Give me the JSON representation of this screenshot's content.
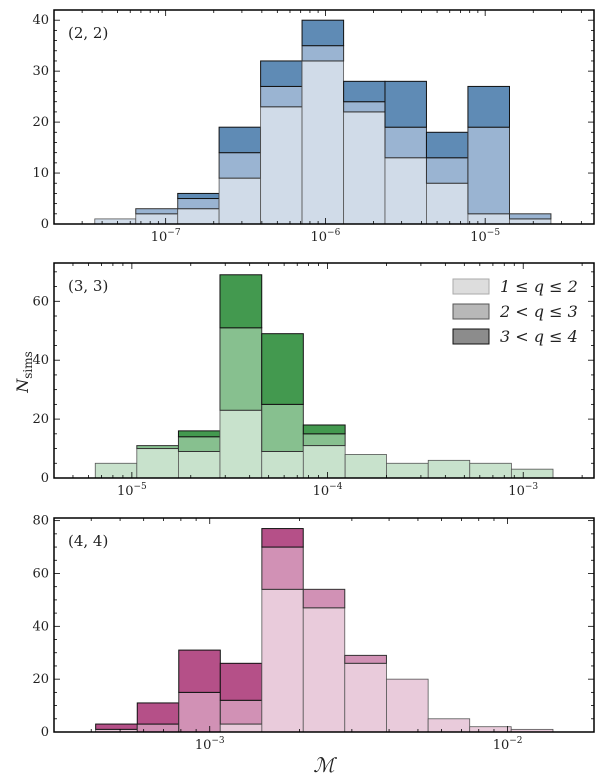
{
  "chart_data": [
    {
      "type": "bar",
      "stacked": true,
      "panel_label": "(2, 2)",
      "x_scale": "log",
      "xlim": [
        2e-08,
        4.8e-05
      ],
      "ylim": [
        0,
        42
      ],
      "yticks": [
        0,
        10,
        20,
        30,
        40
      ],
      "xticks": [
        "10^-7",
        "10^-6",
        "10^-5"
      ],
      "xtick_values": [
        1e-07,
        1e-06,
        1e-05
      ],
      "bin_edges": [
        3.6e-08,
        6.5e-08,
        1.19e-07,
        2.16e-07,
        3.93e-07,
        7.14e-07,
        1.3e-06,
        2.36e-06,
        4.29e-06,
        7.8e-06,
        1.42e-05,
        2.58e-05
      ],
      "colors": [
        "#d0dbe8",
        "#9ab4d2",
        "#5f8bb5"
      ],
      "series": [
        {
          "values": [
            1,
            2,
            3,
            9,
            23,
            32,
            22,
            13,
            8,
            2,
            1
          ]
        },
        {
          "values": [
            0,
            1,
            2,
            5,
            4,
            3,
            2,
            6,
            5,
            17,
            1
          ]
        },
        {
          "values": [
            0,
            0,
            1,
            5,
            5,
            5,
            4,
            9,
            5,
            8,
            0
          ]
        }
      ]
    },
    {
      "type": "bar",
      "stacked": true,
      "panel_label": "(3, 3)",
      "x_scale": "log",
      "xlim": [
        4e-06,
        0.0023
      ],
      "ylim": [
        0,
        73
      ],
      "yticks": [
        0,
        20,
        40,
        60
      ],
      "xticks": [
        "10^-5",
        "10^-4",
        "10^-3"
      ],
      "xtick_values": [
        1e-05,
        0.0001,
        0.001
      ],
      "bin_edges": [
        6.5e-06,
        1.06e-05,
        1.73e-05,
        2.82e-05,
        4.61e-05,
        7.52e-05,
        0.000123,
        0.0002,
        0.000327,
        0.000533,
        0.00087,
        0.00142
      ],
      "colors": [
        "#c8e2cc",
        "#87c08f",
        "#43994f"
      ],
      "series": [
        {
          "values": [
            5,
            10,
            9,
            23,
            9,
            11,
            8,
            5,
            6,
            5,
            3
          ]
        },
        {
          "values": [
            0,
            1,
            5,
            28,
            16,
            4,
            0,
            0,
            0,
            0,
            0
          ]
        },
        {
          "values": [
            0,
            0,
            2,
            18,
            24,
            3,
            0,
            0,
            0,
            0,
            0
          ]
        }
      ],
      "ylabel": "N_sims",
      "legend": {
        "placement": "top-right",
        "entries": [
          "1 ≤ q ≤ 2",
          "2 < q ≤ 3",
          "3 < q ≤ 4"
        ],
        "colors": [
          "#dddddd",
          "#b8b8b8",
          "#8c8c8c"
        ]
      }
    },
    {
      "type": "bar",
      "stacked": true,
      "panel_label": "(4, 4)",
      "x_scale": "log",
      "xlim": [
        0.0003,
        0.0195
      ],
      "ylim": [
        0,
        81
      ],
      "yticks": [
        0,
        20,
        40,
        60,
        80
      ],
      "xticks": [
        "10^-3",
        "10^-2"
      ],
      "xtick_values": [
        0.001,
        0.01
      ],
      "bin_edges": [
        0.000414,
        0.000571,
        0.000787,
        0.001085,
        0.001496,
        0.00206,
        0.00284,
        0.00392,
        0.00541,
        0.00746,
        0.01028,
        0.0142
      ],
      "colors": [
        "#e9cbdb",
        "#d191b5",
        "#b55088"
      ],
      "series": [
        {
          "values": [
            1,
            0,
            0,
            3,
            54,
            47,
            26,
            20,
            5,
            2,
            1
          ]
        },
        {
          "values": [
            0,
            3,
            15,
            9,
            16,
            7,
            3,
            0,
            0,
            0,
            0
          ]
        },
        {
          "values": [
            2,
            8,
            16,
            14,
            7,
            0,
            0,
            0,
            0,
            0,
            0
          ]
        }
      ],
      "xlabel": "ℳ"
    }
  ]
}
